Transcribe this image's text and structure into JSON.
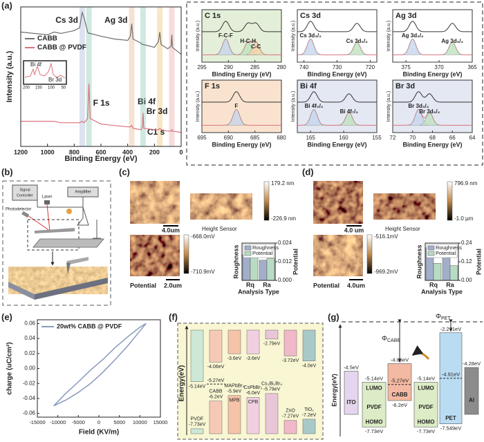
{
  "panel_labels": {
    "a": "(a)",
    "b": "(b)",
    "c": "(c)",
    "d": "(d)",
    "e": "(e)",
    "f": "(f)",
    "g": "(g)"
  },
  "a": {
    "type": "line",
    "xlabel": "Binding Energy (eV)",
    "ylabel": "Intensity (a.u.)",
    "xlim": [
      1200,
      0
    ],
    "ylim": [
      0,
      100
    ],
    "xticks": [
      1200,
      1000,
      800,
      600,
      400,
      200,
      0
    ],
    "x": [
      1200,
      1100,
      1000,
      950,
      900,
      800,
      760,
      740,
      725,
      700,
      690,
      680,
      600,
      500,
      400,
      380,
      370,
      360,
      300,
      290,
      285,
      280,
      200,
      170,
      160,
      150,
      100,
      75,
      70,
      65,
      0
    ],
    "series": [
      {
        "name": "CABB",
        "color": "#6e6e6e",
        "values": [
          82,
          81,
          80,
          82,
          81,
          83,
          85,
          96,
          92,
          82,
          81,
          81,
          79,
          77,
          76,
          79,
          88,
          77,
          74,
          73,
          73,
          73,
          71,
          75,
          82,
          73,
          70,
          72,
          80,
          71,
          66
        ]
      },
      {
        "name": "CABB @ PVDF",
        "color": "#d9727a",
        "values": [
          18,
          18,
          18,
          18,
          17,
          17,
          17,
          18,
          17,
          20,
          45,
          20,
          16,
          15,
          14,
          14,
          15,
          13,
          12,
          14,
          24,
          13,
          12,
          12,
          13,
          12,
          11,
          11,
          12,
          11,
          10
        ]
      }
    ],
    "peaks": [
      {
        "label": "Cs 3d",
        "x": 740,
        "color": "#8f9fc9"
      },
      {
        "label": "Ag 3d",
        "x": 370,
        "color": "#e0a070"
      },
      {
        "label": "Bi 4f",
        "x": 160,
        "color": "#e8b040"
      },
      {
        "label": "Br 3d",
        "x": 70,
        "color": "#e58a8a"
      },
      {
        "label": "F 1s",
        "x": 690,
        "color": "#5fb79a"
      },
      {
        "label": "C1 s",
        "x": 285,
        "color": "#5fb79a"
      }
    ],
    "inset": {
      "labels": [
        "Bi 4f",
        "Br 3d"
      ],
      "xticks": [
        200,
        150,
        100,
        50
      ]
    },
    "xps": {
      "xlabel": "Binding Energy (eV)",
      "ylabel": "Intensity (a.u.)",
      "panels": [
        {
          "title": "C 1s",
          "bg": "#e3efd8",
          "xlim": [
            295,
            280
          ],
          "xticks": [
            295,
            290,
            285,
            280
          ],
          "peaks": [
            {
              "label": "F-C-F",
              "x": 290.5
            },
            {
              "label": "H-C-H",
              "x": 286.3
            },
            {
              "label": "C-C",
              "x": 284.8
            }
          ]
        },
        {
          "title": "Cs 3d",
          "bg": "#ffffff",
          "xlim": [
            742,
            718
          ],
          "xticks": [
            740,
            730,
            720
          ],
          "peaks": [
            {
              "label": "Cs 3d₃/₂",
              "x": 738
            },
            {
              "label": "Cs 3d₅/₂",
              "x": 724
            }
          ]
        },
        {
          "title": "Ag 3d",
          "bg": "#ffffff",
          "xlim": [
            377,
            365
          ],
          "xticks": [
            375,
            370,
            365
          ],
          "peaks": [
            {
              "label": "Ag 3d₃/₂",
              "x": 374
            },
            {
              "label": "Ag 3d₅/₂",
              "x": 368
            }
          ]
        },
        {
          "title": "F 1s",
          "bg": "#f9e3cf",
          "xlim": [
            695,
            680
          ],
          "xticks": [
            695,
            690,
            685,
            680
          ],
          "peaks": [
            {
              "label": "F",
              "x": 688.5
            }
          ]
        },
        {
          "title": "Bi 4f",
          "bg": "#e4e8f2",
          "xlim": [
            167,
            155
          ],
          "xticks": [
            165,
            160,
            155
          ],
          "peaks": [
            {
              "label": "Bi 4f₅/₂",
              "x": 164.5
            },
            {
              "label": "Bi 4f₇/₂",
              "x": 159.2
            }
          ]
        },
        {
          "title": "Br 3d",
          "bg": "#e4e8f2",
          "xlim": [
            72,
            64
          ],
          "xticks": [
            72,
            70,
            68,
            66,
            64
          ],
          "peaks": [
            {
              "label": "Br 3d₃/₂",
              "x": 69.4
            },
            {
              "label": "Br 3d₅/₂",
              "x": 68.3
            }
          ]
        }
      ]
    }
  },
  "b": {
    "signal_controller": [
      "Signal",
      "Controller"
    ],
    "amplifier": "Amplifier",
    "laser": "Laser",
    "photodetector": "Photodetector"
  },
  "c": {
    "scale_top": "4.0um",
    "height_sensor": "Height Sensor",
    "cbar_top": {
      "max": "179.2 nm",
      "min": "-226.9 nm"
    },
    "cbar_bottom": {
      "max": "-668.0mV",
      "min": "-710.9mV"
    },
    "potential": "Potential",
    "scale_bottom": "2.0um",
    "chart": {
      "type": "bar",
      "categories": [
        "Rq",
        "Ra"
      ],
      "xlabel": "Analysis Type",
      "ylabel": "Roughness",
      "y2label": "Potential",
      "y2lim": [
        0,
        0.024
      ],
      "y2ticks": [
        {
          "value": 0,
          "label": "0.000"
        },
        0.012,
        0.024
      ],
      "series": [
        {
          "name": "Roughness",
          "color": "#a3aecb",
          "axis": "y2",
          "values": [
            0.0165,
            0.013
          ]
        },
        {
          "name": "Potential",
          "color": "#b7dcc3",
          "axis": "y2",
          "values": [
            0.0172,
            0.0142
          ]
        }
      ]
    }
  },
  "d": {
    "scale_top": "4.0 um",
    "height_sensor": "Height Sensor",
    "cbar_top": {
      "max": "796.9 nm",
      "min": "-1.0 µm"
    },
    "cbar_bottom": {
      "max": "-516.1mV",
      "min": "-969.2mV"
    },
    "potential": "Potential",
    "scale_bottom": "4.0um",
    "chart": {
      "type": "bar",
      "categories": [
        "Rq",
        "Ra"
      ],
      "xlabel": "Analysis Type",
      "ylabel": "Roughness",
      "y2label": "Potential",
      "y2lim": [
        0,
        0.24
      ],
      "y2ticks": [
        {
          "value": 0,
          "label": "0.00"
        },
        0.12,
        0.24
      ],
      "series": [
        {
          "name": "Roughness",
          "color": "#a3aecb",
          "axis": "y2",
          "values": [
            0.21,
            0.16
          ]
        },
        {
          "name": "Potential",
          "color": "#b7dcc3",
          "axis": "y2",
          "values": [
            0.11,
            0.095
          ]
        }
      ]
    }
  },
  "e": {
    "type": "line",
    "xlabel": "Field (KV/m)",
    "ylabel": "charge (uC/cm²)",
    "xlim": [
      -15000,
      15000
    ],
    "ylim": [
      -0.065,
      0.065
    ],
    "xticks": [
      -15000,
      -10000,
      -5000,
      0,
      5000,
      10000,
      15000
    ],
    "yticks": [
      -0.06,
      -0.04,
      -0.02,
      {
        "value": 0,
        "label": "0.00"
      },
      0.02,
      0.04,
      0.06
    ],
    "series": [
      {
        "name": "20wt% CABB @ PVDF",
        "color": "#8899bb",
        "x": [
          -11000,
          -8000,
          -5000,
          -2000,
          1000,
          4000,
          7000,
          10000,
          11500,
          10000,
          7000,
          4000,
          1000,
          -2000,
          -5000,
          -8000,
          -11000
        ],
        "values": [
          -0.05,
          -0.042,
          -0.032,
          -0.02,
          -0.005,
          0.012,
          0.03,
          0.05,
          0.06,
          0.055,
          0.042,
          0.028,
          0.012,
          -0.002,
          -0.018,
          -0.033,
          -0.05
        ]
      }
    ]
  },
  "f": {
    "ylabel": "Energy(eV)",
    "ylim": [
      -8.0,
      -2.3
    ],
    "items": [
      {
        "name": "PVDF",
        "cb": -5.14,
        "cb_label": "-5.14eV",
        "vb": -7.73,
        "vb_label": "-7.73eV",
        "color": "#cde8d5"
      },
      {
        "name": "CABB",
        "cb": -4.06,
        "cb_label": "-4.06eV",
        "vb": -6.2,
        "vb_label": "-6.2eV",
        "ef": -5.27,
        "ef_label": "-5.27eV",
        "color": "#f6c9b6"
      },
      {
        "name": "MAPbBr₃",
        "abbr": "MPB",
        "cb": -3.6,
        "cb_label": "-3.6eV",
        "vb": -5.9,
        "vb_label": "-5.9eV",
        "color": "#f5c3a8"
      },
      {
        "name": "CsPbBr₃",
        "abbr": "CPB",
        "cb": -3.6,
        "cb_label": "-3.6eV",
        "vb": -6.0,
        "vb_label": "-6.0eV",
        "color": "#f0d0e0"
      },
      {
        "name": "Cs₃Bi₂Br₉",
        "cb": -2.79,
        "cb_label": "-2.79eV",
        "vb": -5.79,
        "vb_label": "-5.79eV",
        "color": "#e8c6d8"
      },
      {
        "name": "ZnO",
        "cb": -3.72,
        "cb_label": "-3.72eV",
        "vb": -7.27,
        "vb_label": "-7.27eV",
        "color": "#f0b8c8"
      },
      {
        "name": "TiO₂",
        "cb": -4.0,
        "cb_label": "-4.0eV",
        "vb": -7.2,
        "vb_label": "-7.2eV",
        "color": "#a9c9c9"
      }
    ]
  },
  "g": {
    "ylabel": "Energy(eV)",
    "ylim": [
      -8.2,
      -1.8
    ],
    "lumo": "LUMO",
    "homo": "HOMO",
    "phi_cabb": {
      "symbol": "Φ",
      "sub": "CABB"
    },
    "phi_pet": {
      "symbol": "Φ",
      "sub": "PET"
    },
    "items": [
      {
        "name": "ITO",
        "top": -4.5,
        "top_label": "-4.5eV",
        "color": "#e5d5ee"
      },
      {
        "name": "PVDF",
        "top": -5.14,
        "top_label": "-5.14eV",
        "bottom": -7.73,
        "bottom_label": "-7.73eV",
        "color": "#dcecc6",
        "orbitals": true
      },
      {
        "name": "CABB",
        "top": -4.06,
        "top_label": "-4.06eV",
        "mid": -5.27,
        "mid_label": "-5.27eV",
        "bottom": -6.2,
        "bottom_label": "-6.2eV",
        "color": "#f3b9a2"
      },
      {
        "name": "PVDF",
        "top": -5.14,
        "top_label": "-5.14eV",
        "bottom": -7.73,
        "bottom_label": "-7.73eV",
        "color": "#dcecc6",
        "orbitals": true
      },
      {
        "name": "PET",
        "top": -2.271,
        "top_label": "-2.271eV",
        "mid": -4.91,
        "mid_label": "-4.91eV",
        "bottom": -7.549,
        "bottom_label": "-7.549eV",
        "color": "#b9dcf2"
      },
      {
        "name": "Al",
        "top": -4.28,
        "top_label": "-4.28eV",
        "color": "#8c8c8c"
      }
    ]
  }
}
